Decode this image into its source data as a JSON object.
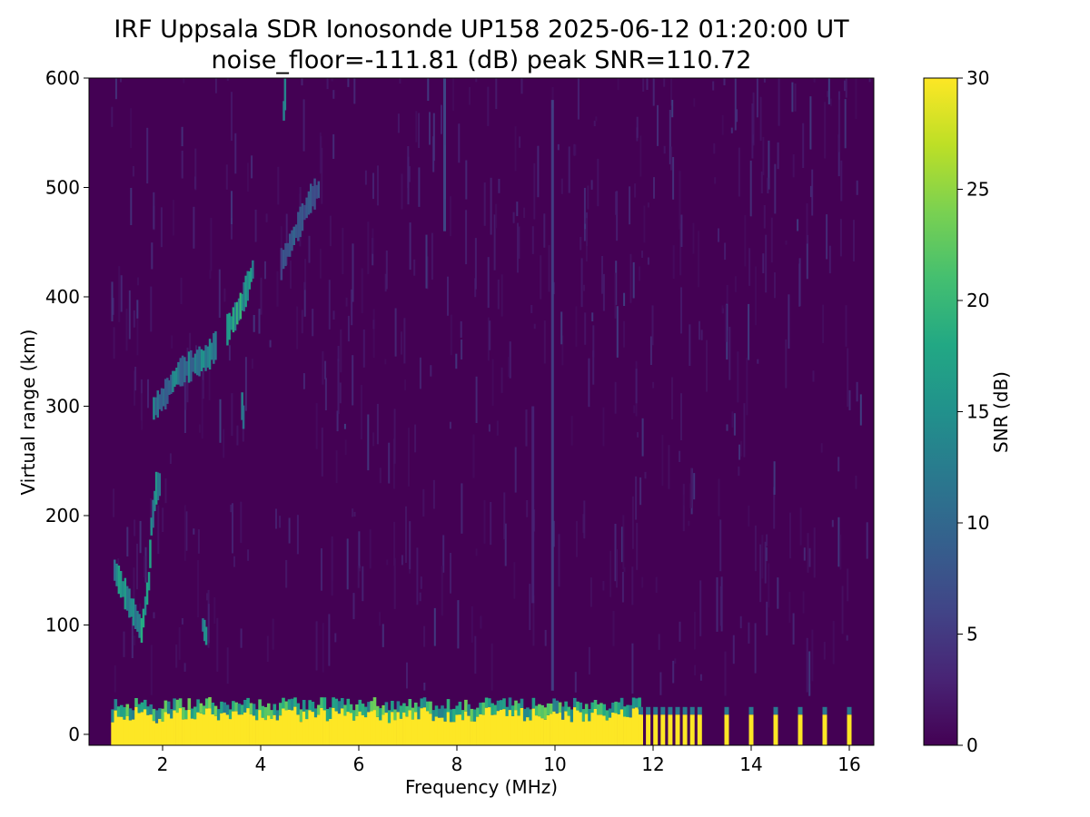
{
  "chart_data": {
    "type": "heatmap",
    "title": "IRF Uppsala SDR Ionosonde UP158 2025-06-12 01:20:00  UT",
    "subtitle": "noise_floor=-111.81 (dB) peak SNR=110.72",
    "xlabel": "Frequency (MHz)",
    "ylabel": "Virtual range (km)",
    "xlim": [
      0.5,
      16.5
    ],
    "ylim": [
      -10,
      600
    ],
    "x_ticks": [
      2,
      4,
      6,
      8,
      10,
      12,
      14,
      16
    ],
    "y_ticks": [
      0,
      100,
      200,
      300,
      400,
      500,
      600
    ],
    "colorbar": {
      "label": "SNR (dB)",
      "range": [
        0,
        30
      ],
      "ticks": [
        0,
        5,
        10,
        15,
        20,
        25,
        30
      ],
      "colormap": "viridis"
    },
    "freq_coverage_mhz": [
      0.95,
      16.4
    ],
    "ground_echo": {
      "range_km": [
        -10,
        30
      ],
      "continuous_to_mhz": 11.7,
      "discrete_sweep_mhz": [
        11.75,
        11.9,
        12.05,
        12.2,
        12.35,
        12.5,
        12.65,
        12.8,
        12.95,
        13.5,
        14.0,
        14.5,
        15.0,
        15.5,
        16.0
      ]
    },
    "traces": [
      {
        "points": [
          [
            1.0,
            150
          ],
          [
            1.3,
            120
          ],
          [
            1.55,
            95
          ],
          [
            1.7,
            140
          ],
          [
            1.75,
            190
          ],
          [
            1.85,
            225
          ],
          [
            1.95,
            230
          ]
        ],
        "snr": 17
      },
      {
        "points": [
          [
            1.8,
            298
          ],
          [
            2.0,
            308
          ],
          [
            2.15,
            320
          ],
          [
            2.3,
            330
          ],
          [
            2.6,
            338
          ],
          [
            2.9,
            345
          ],
          [
            3.1,
            358
          ]
        ],
        "snr": 14
      },
      {
        "points": [
          [
            3.3,
            370
          ],
          [
            3.5,
            385
          ],
          [
            3.6,
            395
          ],
          [
            3.75,
            415
          ],
          [
            3.85,
            430
          ]
        ],
        "snr": 19
      },
      {
        "points": [
          [
            4.4,
            430
          ],
          [
            4.7,
            460
          ],
          [
            5.0,
            490
          ],
          [
            5.2,
            500
          ]
        ],
        "snr": 9
      },
      {
        "points": [
          [
            2.8,
            100
          ],
          [
            2.9,
            85
          ]
        ],
        "snr": 15
      },
      {
        "points": [
          [
            3.6,
            300
          ],
          [
            3.65,
            280
          ]
        ],
        "snr": 15
      },
      {
        "points": [
          [
            4.45,
            570
          ],
          [
            4.5,
            600
          ]
        ],
        "snr": 14
      }
    ],
    "interference_lines_mhz": [
      {
        "freq": 7.75,
        "range_km": [
          460,
          600
        ],
        "snr": 7
      },
      {
        "freq": 9.95,
        "range_km": [
          40,
          580
        ],
        "snr": 6
      },
      {
        "freq": 9.55,
        "range_km": [
          120,
          300
        ],
        "snr": 3
      }
    ]
  }
}
